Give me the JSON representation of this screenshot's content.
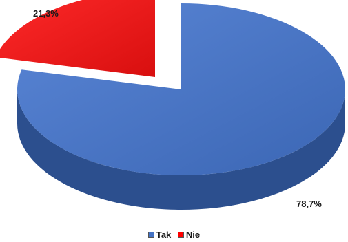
{
  "chart_data": {
    "type": "pie",
    "style": "3d-exploded",
    "categories": [
      "Tak",
      "Nie"
    ],
    "values": [
      78.7,
      21.3
    ],
    "data_labels": [
      "78,7%",
      "21,3%"
    ],
    "unit": "%",
    "legend": {
      "position": "bottom",
      "entries": [
        "Tak",
        "Nie"
      ]
    },
    "colors": {
      "Tak": {
        "top": "#4a76c8",
        "side": "#2c4f8e"
      },
      "Nie": {
        "top": "#ef1c1c",
        "side": "#7a0a0a"
      }
    }
  }
}
